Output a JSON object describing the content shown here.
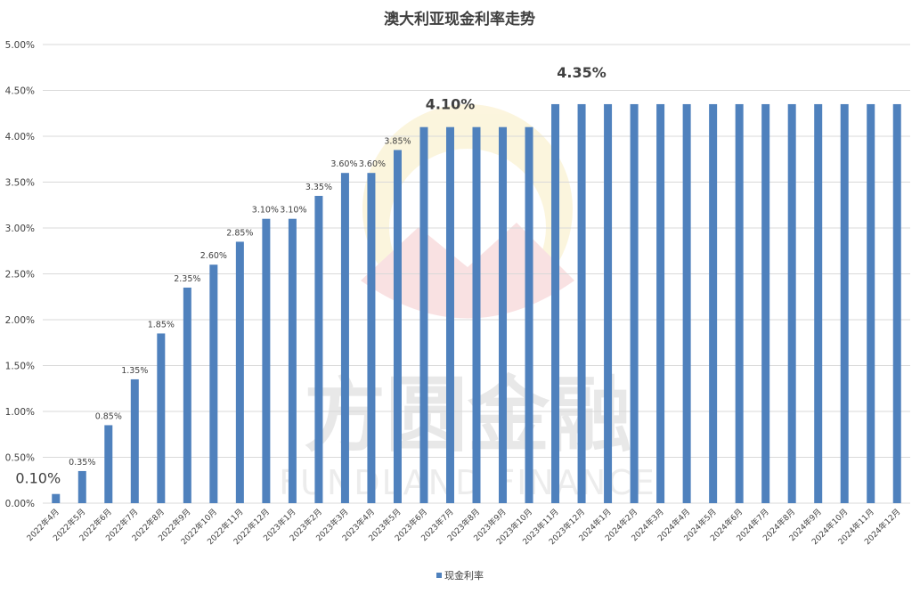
{
  "chart_data": {
    "type": "bar",
    "title": "澳大利亚现金利率走势",
    "categories": [
      "2022年4月",
      "2022年5月",
      "2022年6月",
      "2022年7月",
      "2022年8月",
      "2022年9月",
      "2022年10月",
      "2022年11月",
      "2022年12月",
      "2023年1月",
      "2023年2月",
      "2023年3月",
      "2023年4月",
      "2023年5月",
      "2023年6月",
      "2023年7月",
      "2023年8月",
      "2023年9月",
      "2023年10月",
      "2023年11月",
      "2023年12月",
      "2024年1月",
      "2024年2月",
      "2024年3月",
      "2024年4月",
      "2024年5月",
      "2024年6月",
      "2024年7月",
      "2024年8月",
      "2024年9月",
      "2024年10月",
      "2024年11月",
      "2024年12月"
    ],
    "series": [
      {
        "name": "现金利率",
        "color": "#4f81bd",
        "values": [
          0.1,
          0.35,
          0.85,
          1.35,
          1.85,
          2.35,
          2.6,
          2.85,
          3.1,
          3.1,
          3.35,
          3.6,
          3.6,
          3.85,
          4.1,
          4.1,
          4.1,
          4.1,
          4.1,
          4.35,
          4.35,
          4.35,
          4.35,
          4.35,
          4.35,
          4.35,
          4.35,
          4.35,
          4.35,
          4.35,
          4.35,
          4.35,
          4.35
        ]
      }
    ],
    "y_ticks": [
      "0.00%",
      "0.50%",
      "1.00%",
      "1.50%",
      "2.00%",
      "2.50%",
      "3.00%",
      "3.50%",
      "4.00%",
      "4.50%",
      "5.00%"
    ],
    "ylim": [
      0,
      5
    ],
    "grid": true,
    "legend_position": "bottom",
    "data_labels": [
      {
        "index": 0,
        "text": "0.10%",
        "style": "large"
      },
      {
        "index": 1,
        "text": "0.35%",
        "style": "small"
      },
      {
        "index": 2,
        "text": "0.85%",
        "style": "small"
      },
      {
        "index": 3,
        "text": "1.35%",
        "style": "small"
      },
      {
        "index": 4,
        "text": "1.85%",
        "style": "small"
      },
      {
        "index": 5,
        "text": "2.35%",
        "style": "small"
      },
      {
        "index": 6,
        "text": "2.60%",
        "style": "small"
      },
      {
        "index": 7,
        "text": "2.85%",
        "style": "small"
      },
      {
        "index": 8,
        "text": "3.10%",
        "style": "small"
      },
      {
        "index": 9,
        "text": "3.10%",
        "style": "small"
      },
      {
        "index": 10,
        "text": "3.35%",
        "style": "small"
      },
      {
        "index": 11,
        "text": "3.60%",
        "style": "small"
      },
      {
        "index": 12,
        "text": "3.60%",
        "style": "small"
      },
      {
        "index": 13,
        "text": "3.85%",
        "style": "small"
      },
      {
        "index": 15,
        "text": "4.10%",
        "style": "bold"
      },
      {
        "index": 20,
        "text": "4.35%",
        "style": "bold"
      }
    ]
  },
  "watermark": {
    "text_cn": "方圆金融",
    "text_en": "FUNDLAND FINANCE"
  }
}
